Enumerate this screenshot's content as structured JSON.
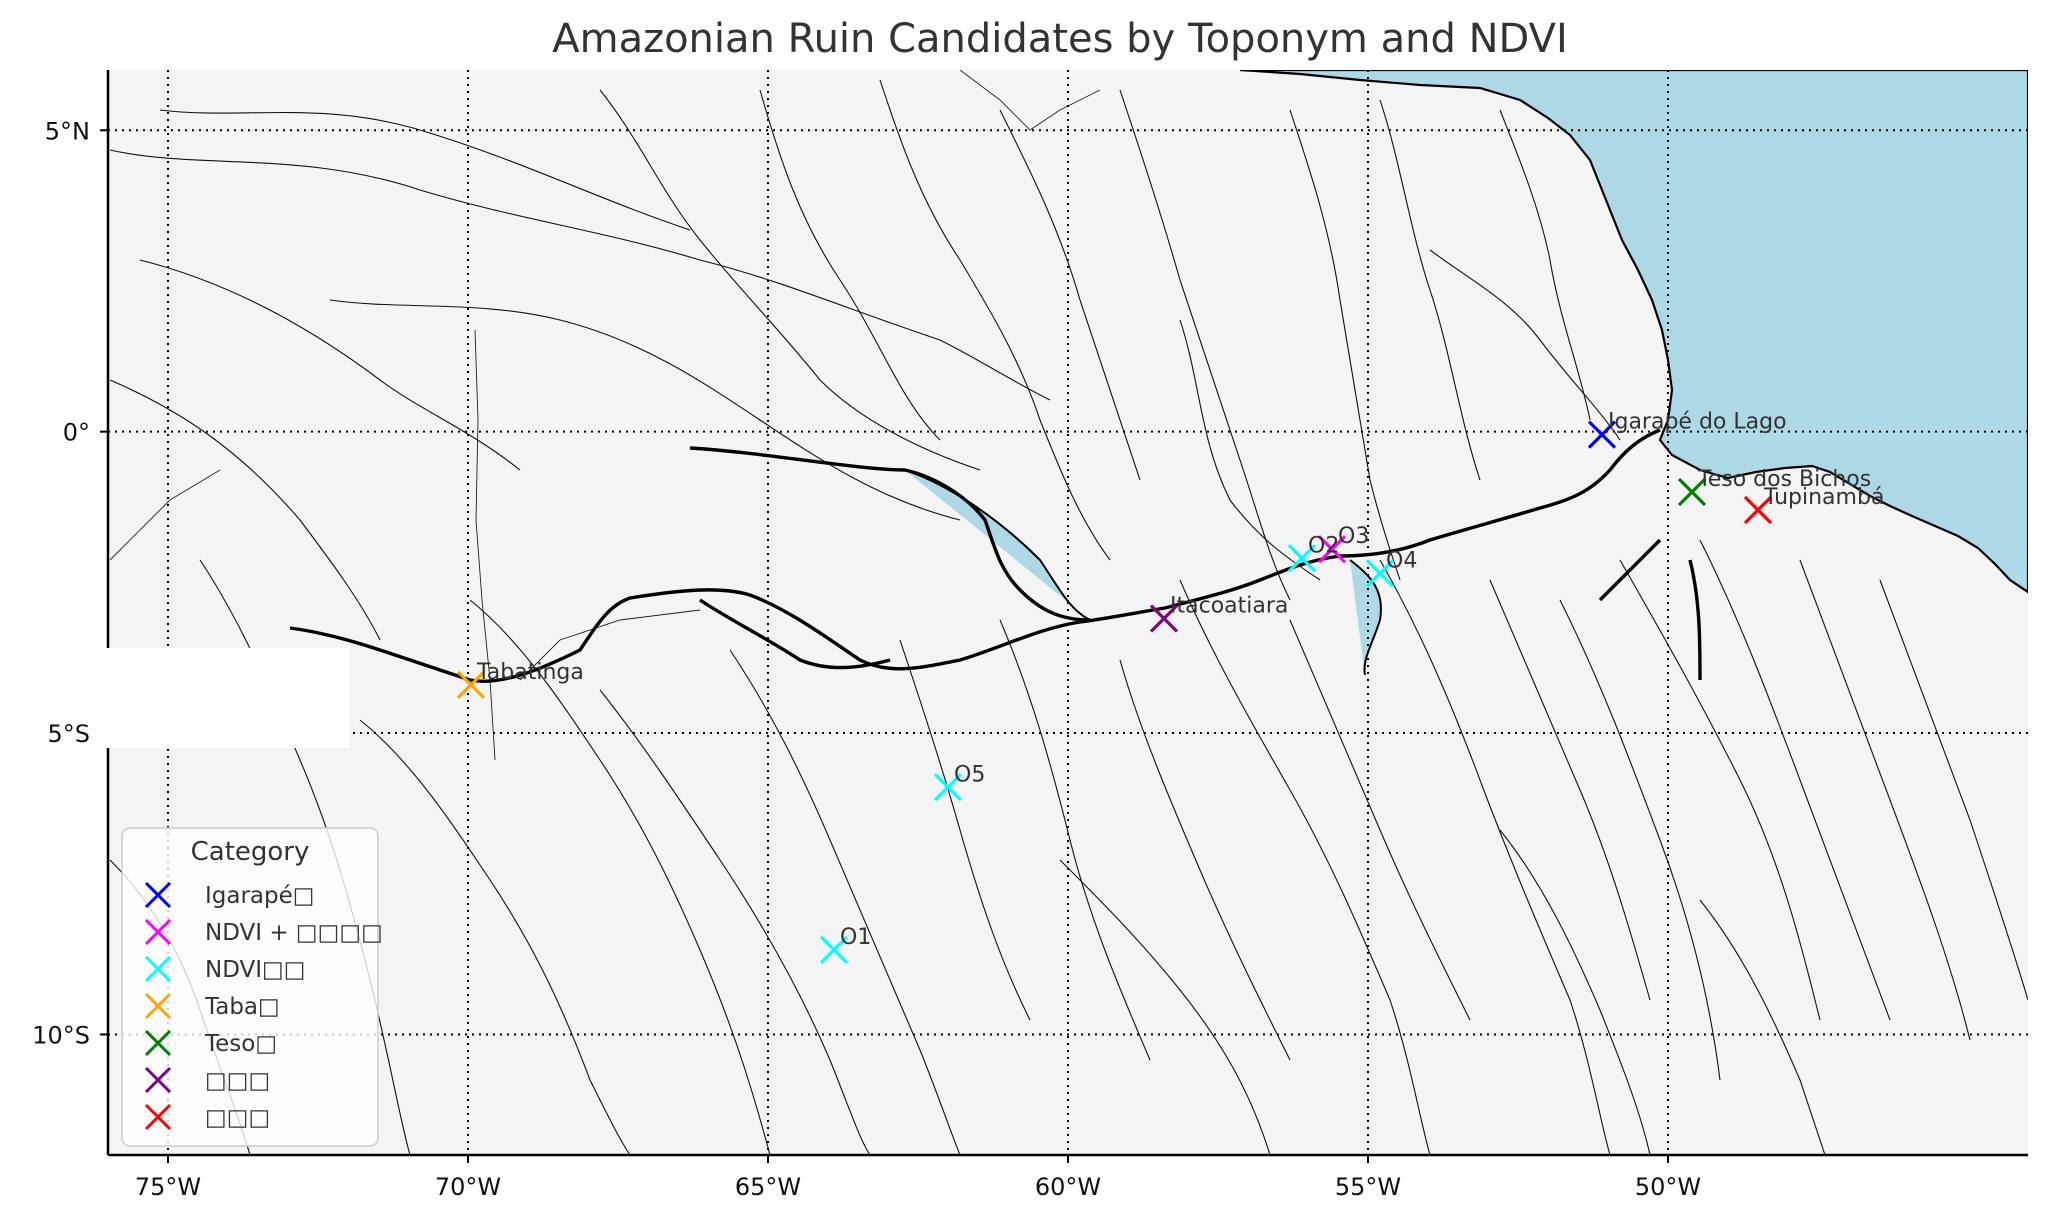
{
  "title": "Amazonian Ruin Candidates by Toponym and NDVI",
  "colors": {
    "land": "#f4f4f4",
    "ocean": "#add8e6",
    "river_water": "#add8e6",
    "coast": "#000000"
  },
  "axes": {
    "x_ticks": [
      {
        "lon": -75,
        "label": "75°W"
      },
      {
        "lon": -70,
        "label": "70°W"
      },
      {
        "lon": -65,
        "label": "65°W"
      },
      {
        "lon": -60,
        "label": "60°W"
      },
      {
        "lon": -55,
        "label": "55°W"
      },
      {
        "lon": -50,
        "label": "50°W"
      }
    ],
    "y_ticks": [
      {
        "lat": 5,
        "label": "5°N"
      },
      {
        "lat": 0,
        "label": "0°"
      },
      {
        "lat": -5,
        "label": "5°S"
      },
      {
        "lat": -10,
        "label": "10°S"
      }
    ],
    "lon_range": [
      -76,
      -44
    ],
    "lat_range": [
      -12,
      6
    ],
    "grid": true
  },
  "legend": {
    "title": "Category",
    "placement": "lower-left",
    "entries": [
      {
        "label": "Igarapé□",
        "color": "#0000ff",
        "marker": "x"
      },
      {
        "label": "NDVI + □□□□",
        "color": "#ff00ff",
        "marker": "x"
      },
      {
        "label": "NDVI□□",
        "color": "#00ffff",
        "marker": "x"
      },
      {
        "label": "Taba□",
        "color": "#ffa500",
        "marker": "x"
      },
      {
        "label": "Teso□",
        "color": "#008000",
        "marker": "x"
      },
      {
        "label": "□□□",
        "color": "#800080",
        "marker": "x"
      },
      {
        "label": "□□□",
        "color": "#ff0000",
        "marker": "x"
      }
    ]
  },
  "points": [
    {
      "name": "Igarapé do Lago",
      "lon": -51.1,
      "lat": -0.05,
      "color": "#0000ff"
    },
    {
      "name": "Teso dos Bichos",
      "lon": -49.6,
      "lat": -1.0,
      "color": "#008000"
    },
    {
      "name": "Tupinambá",
      "lon": -48.5,
      "lat": -1.3,
      "color": "#ff0000"
    },
    {
      "name": "Itacoatiara",
      "lon": -58.4,
      "lat": -3.1,
      "color": "#800080"
    },
    {
      "name": "Tabatinga",
      "lon": -69.95,
      "lat": -4.2,
      "color": "#ffa500"
    },
    {
      "name": "O3",
      "lon": -55.6,
      "lat": -1.95,
      "color": "#ff00ff"
    },
    {
      "name": "O2",
      "lon": -56.1,
      "lat": -2.1,
      "color": "#00ffff"
    },
    {
      "name": "O4",
      "lon": -54.8,
      "lat": -2.35,
      "color": "#00ffff"
    },
    {
      "name": "O5",
      "lon": -62.0,
      "lat": -5.9,
      "color": "#00ffff"
    },
    {
      "name": "O1",
      "lon": -63.9,
      "lat": -8.6,
      "color": "#00ffff"
    }
  ]
}
